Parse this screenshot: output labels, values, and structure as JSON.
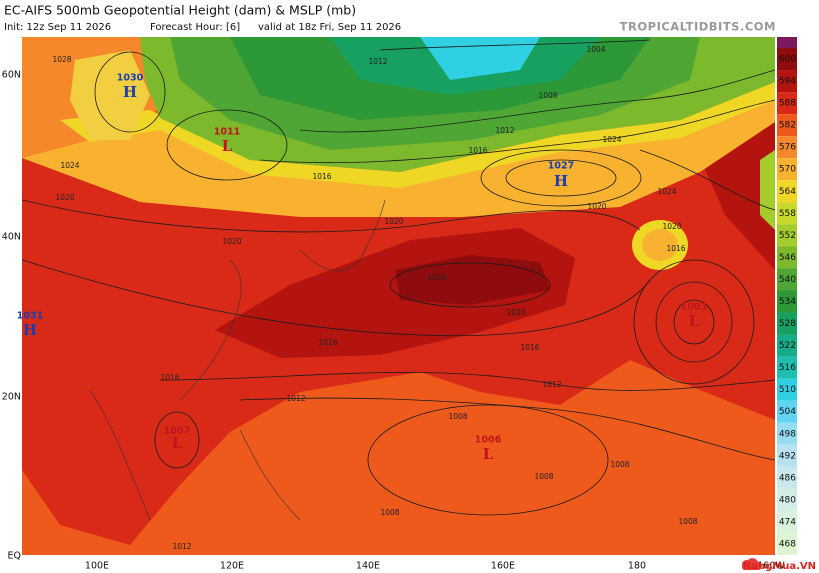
{
  "header": {
    "title": "EC-AIFS 500mb Geopotential Height (dam) & MSLP (mb)",
    "init": "Init: 12z Sep 11 2026",
    "forecast_hour": "Forecast Hour: [6]",
    "valid": "valid at 18z Fri, Sep 11 2026",
    "site": "TROPICALTIDBITS.COM"
  },
  "lat_labels": [
    "60N",
    "40N",
    "20N",
    "EQ"
  ],
  "lon_labels": [
    "100E",
    "120E",
    "140E",
    "160E",
    "180",
    "160W"
  ],
  "colorbar": {
    "top_color": "#7b1a5c",
    "levels": [
      600,
      594,
      588,
      582,
      576,
      570,
      564,
      558,
      552,
      546,
      540,
      534,
      528,
      522,
      516,
      510,
      504,
      498,
      492,
      486,
      480,
      474,
      468
    ],
    "colors": [
      "#8e0b0e",
      "#b3140f",
      "#d92a18",
      "#ee5a1c",
      "#f5882a",
      "#f8b230",
      "#efd726",
      "#c9d92c",
      "#a4cc2c",
      "#7cb92c",
      "#4fa634",
      "#2c9838",
      "#18a060",
      "#14ad88",
      "#1fbfae",
      "#2fd0e2",
      "#60d4f0",
      "#96dcf2",
      "#b8e2f2",
      "#c8e8ee",
      "#d2eee6",
      "#d8f2dc",
      "#ddf5d2"
    ]
  },
  "pressure_centers": [
    {
      "letter": "H",
      "value": "1030"
    },
    {
      "letter": "L",
      "value": "1011"
    },
    {
      "letter": "H",
      "value": "1027"
    },
    {
      "letter": "H",
      "value": "1031"
    },
    {
      "letter": "L",
      "value": "1007"
    },
    {
      "letter": "L",
      "value": "1006"
    },
    {
      "letter": "L",
      "value": "1003"
    }
  ],
  "isobar_labels": [
    "1028",
    "1024",
    "1020",
    "1012",
    "1004",
    "1008",
    "1012",
    "1016",
    "1024",
    "1020",
    "1016",
    "1020",
    "1024",
    "1020",
    "1020",
    "1016",
    "1012",
    "1012",
    "1008",
    "1008",
    "1008",
    "1008",
    "1008",
    "1016",
    "1016",
    "1020",
    "1016",
    "1020",
    "1012"
  ],
  "watermark": "NangMua.VN"
}
